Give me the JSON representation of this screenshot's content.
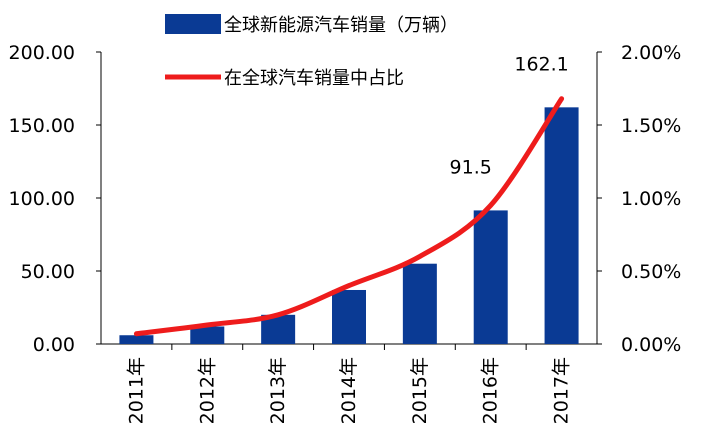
{
  "chart_data": {
    "type": "bar",
    "categories": [
      "2011年",
      "2012年",
      "2013年",
      "2014年",
      "2015年",
      "2016年",
      "2017年"
    ],
    "series": [
      {
        "name": "全球新能源汽车销量（万辆）",
        "chart_type": "bar",
        "axis": "left",
        "color": "#0a3a94",
        "values": [
          6,
          12,
          20,
          37,
          55,
          91.5,
          162.1
        ]
      },
      {
        "name": "在全球汽车销量中占比",
        "chart_type": "line",
        "axis": "right",
        "color": "#ee1c1c",
        "values": [
          0.0007,
          0.0013,
          0.002,
          0.004,
          0.006,
          0.0095,
          0.0168
        ]
      }
    ],
    "data_labels": [
      {
        "category": "2016年",
        "text": "91.5"
      },
      {
        "category": "2017年",
        "text": "162.1"
      }
    ],
    "y_left": {
      "lim": [
        0,
        200
      ],
      "ticks": [
        0,
        50,
        100,
        150,
        200
      ],
      "tick_labels": [
        "0.00",
        "50.00",
        "100.00",
        "150.00",
        "200.00"
      ]
    },
    "y_right": {
      "lim": [
        0,
        0.02
      ],
      "ticks": [
        0,
        0.005,
        0.01,
        0.015,
        0.02
      ],
      "tick_labels": [
        "0.00%",
        "0.50%",
        "1.00%",
        "1.50%",
        "2.00%"
      ]
    },
    "grid": false,
    "legend_position": "top-left"
  }
}
